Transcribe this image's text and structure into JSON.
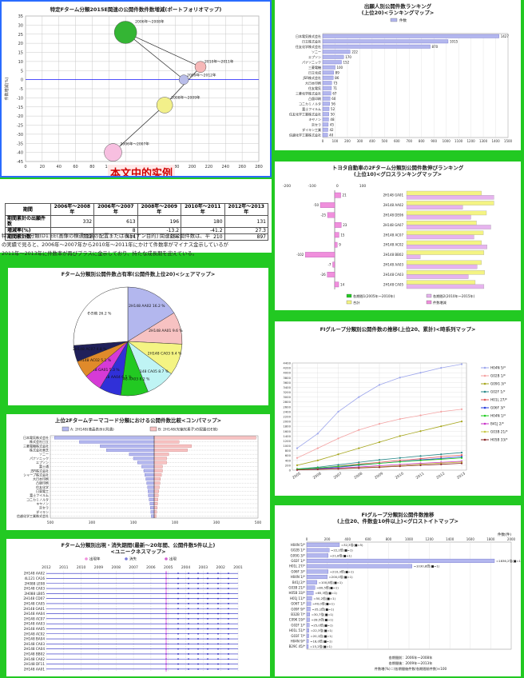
{
  "p1": {
    "title": "特定Fターム分類2015E関連の公開件数件数増減(ポートフォリオマップ)",
    "watermark": "本文中的实例",
    "xticks": [
      "0",
      "20",
      "40",
      "60",
      "80",
      "100",
      "120",
      "140",
      "160",
      "180",
      "200",
      "220",
      "240",
      "260",
      "280"
    ],
    "yticks": [
      "35",
      "30",
      "25",
      "20",
      "15",
      "10",
      "5",
      "0",
      "-5",
      "-10",
      "-15",
      "-20",
      "-25",
      "-30",
      "-35",
      "-40",
      "-45"
    ],
    "xlabel": "公開件数(件)",
    "ylabel": "件数増減(%)",
    "bubbles": [
      {
        "label": "2006年～2008年",
        "x": 120,
        "y": 26,
        "r": 14,
        "color": "#34b534"
      },
      {
        "label": "2010年～2011年",
        "x": 210,
        "y": 7,
        "r": 7,
        "color": "#f6b7b7"
      },
      {
        "label": "2009年～2012年",
        "x": 190,
        "y": 0,
        "r": 6,
        "color": "#b9bde9"
      },
      {
        "label": "2008年～2009年",
        "x": 167,
        "y": -14,
        "r": 10,
        "color": "#f2f08a"
      },
      {
        "label": "2006年～2007年",
        "x": 105,
        "y": -40,
        "r": 11,
        "color": "#f7bfe0"
      }
    ],
    "table": {
      "headers": [
        "期間",
        "2006年～2008年",
        "2006年～2007年",
        "2008年～2009年",
        "2010年～2011年",
        "2012年～2013年"
      ],
      "rows": [
        {
          "label": "期間累計の出願件数",
          "values": [
            "332",
            "613",
            "196",
            "180",
            "131"
          ]
        },
        {
          "label": "増減率(%)",
          "values": [
            "",
            "8",
            "-13.2",
            "-41.2",
            "27.3"
          ]
        },
        {
          "label": "期間累計数",
          "values": [
            "332",
            "414",
            "356",
            "210",
            "897"
          ]
        }
      ]
    },
    "para": [
      "特定Fターム分類(D1:EE(画像の横通視盤の配置または表示[ナン目的] 関連の公開件数は、平",
      "の実績で見ると、2006年～2007年から2010年～2011年にかけて件数率がマイナス金示しているが",
      "2011年～2013年に件数率が再びプラスに金示しており、持たな成長期を迎えている。"
    ]
  },
  "p2": {
    "title": "Fターム分類別公開件数占有率(公開件数上位20)<シェアマップ>",
    "slices": [
      {
        "label": "2H148 AA02 16.2 %",
        "value": 16.2,
        "color": "#b3b7ee"
      },
      {
        "label": "2H148 AA01 9.6 %",
        "value": 9.6,
        "color": "#f7c2c2"
      },
      {
        "label": "2H148 CA03 9.4 %",
        "value": 9.4,
        "color": "#f4f483"
      },
      {
        "label": "2H148 CA05 8.7 %",
        "value": 8.7,
        "color": "#bff4f4"
      },
      {
        "label": "2H148 AA03 8.2 %",
        "value": 8.2,
        "color": "#22c922"
      },
      {
        "label": "2H148 AA04 6.5 %",
        "value": 6.5,
        "color": "#3030d8"
      },
      {
        "label": "2H148 GA01 5.3 %",
        "value": 5.3,
        "color": "#d63ad6"
      },
      {
        "label": "2H148 AC02 5.1 %",
        "value": 5.1,
        "color": "#e08a2a"
      },
      {
        "label": "2H148 AC07 4.8 %",
        "value": 4.8,
        "color": "#20205a"
      },
      {
        "label": "その他 26.2 %",
        "value": 26.2,
        "color": "#ffffff"
      }
    ]
  },
  "p3": {
    "title": "上位2Fタームテーマコード分類における公開件数比較<コンパマップ>",
    "legend": [
      "A: 2H148(液晶表示)(共通)",
      "B: 2H148(光偏光素子)の配置(DE他)"
    ],
    "items": [
      {
        "name": "日本電気株式会社",
        "a": 480,
        "b": 490
      },
      {
        "name": "株式会社日立",
        "a": 360,
        "b": 120
      },
      {
        "name": "三菱電機株式会社",
        "a": 260,
        "b": 180
      },
      {
        "name": "株式会社東芝",
        "a": 230,
        "b": 160
      },
      {
        "name": "ソニー",
        "a": 120,
        "b": 70
      },
      {
        "name": "パナソニック",
        "a": 100,
        "b": 60
      },
      {
        "name": "エプソン",
        "a": 80,
        "b": 60
      },
      {
        "name": "富士通",
        "a": 60,
        "b": 40
      },
      {
        "name": "JSR株式会社",
        "a": 50,
        "b": 40
      },
      {
        "name": "シャープ株式会社",
        "a": 45,
        "b": 35
      },
      {
        "name": "大日本印刷",
        "a": 40,
        "b": 30
      },
      {
        "name": "凸版印刷",
        "a": 36,
        "b": 28
      },
      {
        "name": "住友化学",
        "a": 32,
        "b": 25
      },
      {
        "name": "日東電工",
        "a": 30,
        "b": 22
      },
      {
        "name": "富士フイルム",
        "a": 28,
        "b": 20
      },
      {
        "name": "コニカミノルタ",
        "a": 24,
        "b": 18
      },
      {
        "name": "キヤノン",
        "a": 20,
        "b": 16
      },
      {
        "name": "京セラ",
        "a": 18,
        "b": 14
      },
      {
        "name": "ダイキン",
        "a": 16,
        "b": 12
      },
      {
        "name": "信越化学工業株式会社",
        "a": 14,
        "b": 10
      }
    ],
    "ticks": [
      "500",
      "300",
      "100",
      "100",
      "300",
      "500"
    ]
  },
  "p4": {
    "title": "Fターム分類別出現・消失期間(最新～20年間、公開件数5件以上)",
    "subtitle": "<ユニークネスマップ>",
    "legend": [
      "出現年",
      "消失",
      "出現"
    ],
    "years": [
      "2012",
      "2011",
      "2010",
      "2009",
      "2008",
      "2007",
      "2006",
      "2005",
      "2004",
      "2003",
      "2002",
      "2001"
    ],
    "rows": [
      "2H148 AA02",
      "4L121 CA16",
      "2H088 LE08",
      "2H148 CA03",
      "2H088 LB05",
      "2H148 CD07",
      "2H148 CA05",
      "2H148 GA01",
      "2H148 AA04",
      "2H148 AC07",
      "2H148 AA03",
      "2H148 AA05",
      "2H148 AC02",
      "2H148 BA04",
      "2H148 CA03",
      "2H148 CA04",
      "2H148 BB02",
      "2H148 CA02",
      "2H148 DF11",
      "2H148 AA01"
    ]
  },
  "p5": {
    "title": "出願人別公開件数ランキング",
    "subtitle": "(上位20)<ランキングマップ>",
    "legend": "件数",
    "items": [
      {
        "name": "日本電気株式会社",
        "value": 1427
      },
      {
        "name": "日立株式会社",
        "value": 1015
      },
      {
        "name": "住友化学株式会社",
        "value": 870
      },
      {
        "name": "ソニー",
        "value": 222
      },
      {
        "name": "エプソン",
        "value": 170
      },
      {
        "name": "パナソニック",
        "value": 152
      },
      {
        "name": "三菱電機",
        "value": 100
      },
      {
        "name": "日立化成",
        "value": 89
      },
      {
        "name": "JSR株式会社",
        "value": 86
      },
      {
        "name": "大日本印刷",
        "value": 73
      },
      {
        "name": "住友電気",
        "value": 71
      },
      {
        "name": "三菱化学株式会社",
        "value": 67
      },
      {
        "name": "凸版印刷",
        "value": 60
      },
      {
        "name": "コニカミノルタ",
        "value": 56
      },
      {
        "name": "富士フイルム",
        "value": 52
      },
      {
        "name": "住友化学工業株式会社",
        "value": 50
      },
      {
        "name": "キヤノン",
        "value": 48
      },
      {
        "name": "京セラ",
        "value": 45
      },
      {
        "name": "ダイキン工業",
        "value": 42
      },
      {
        "name": "信越化学工業株式会社",
        "value": 40
      }
    ],
    "ticks": [
      "0",
      "100",
      "200",
      "300",
      "400",
      "500",
      "600",
      "700",
      "800",
      "900",
      "1000",
      "1100",
      "1200",
      "1300",
      "1400",
      "1500"
    ]
  },
  "p6": {
    "title": "トヨタ自動車の2Fターム分類別公開件数伸びランキング",
    "subtitle": "(上位10)<グロスランキングマップ>",
    "legend": [
      "各期間1(2005年～2010年)",
      "各期間2(2010年～2015年)",
      "合計",
      "件数増減"
    ],
    "rows": [
      {
        "label": "2H148 GA01",
        "delta": 21,
        "v1": 120,
        "v2": 140
      },
      {
        "label": "2H148 AA02",
        "delta": -50,
        "v1": 140,
        "v2": 90
      },
      {
        "label": "2H148 DE06",
        "delta": -25,
        "v1": 128,
        "v2": 103
      },
      {
        "label": "2H148 GA07",
        "delta": 23,
        "v1": 112,
        "v2": 135
      },
      {
        "label": "2H148 AC07",
        "delta": 15,
        "v1": 123,
        "v2": 108
      },
      {
        "label": "2H148 AC02",
        "delta": 9,
        "v1": 120,
        "v2": 129
      },
      {
        "label": "2H148 BB02",
        "delta": -102,
        "v1": 124,
        "v2": 22
      },
      {
        "label": "2H148 AA03",
        "delta": -7,
        "v1": 120,
        "v2": 113
      },
      {
        "label": "2H148 CA03",
        "delta": -26,
        "v1": 125,
        "v2": 99
      },
      {
        "label": "2H148 CA05",
        "delta": 14,
        "v1": 110,
        "v2": 124
      }
    ]
  },
  "p7": {
    "title": "FIグループ分類別公開件数の推移(上位20、累計)<時系列マップ>",
    "years": [
      "2005",
      "2006",
      "2007",
      "2008",
      "2009",
      "2010",
      "2011",
      "2012",
      "2013"
    ],
    "yticks": [
      "0",
      "200",
      "400",
      "600",
      "800",
      "1000",
      "1200",
      "1400",
      "1600",
      "1800",
      "2000",
      "2200",
      "2400",
      "2600",
      "2800",
      "3000",
      "3200",
      "3400",
      "3600",
      "3800",
      "4000",
      "4200",
      "4400"
    ],
    "series": [
      {
        "name": "H04N 5/*",
        "color": "#9ea7ec",
        "values": [
          900,
          1500,
          2400,
          3000,
          3500,
          3800,
          4000,
          4200,
          4350
        ]
      },
      {
        "name": "G02B 1/*",
        "color": "#f4a3a3",
        "values": [
          500,
          900,
          1300,
          1650,
          1900,
          2100,
          2250,
          2400,
          2500
        ]
      },
      {
        "name": "G09G 3/*",
        "color": "#a7a71e",
        "values": [
          200,
          400,
          650,
          900,
          1150,
          1400,
          1600,
          1800,
          2000
        ]
      },
      {
        "name": "G02F 1/*",
        "color": "#2a8a8a",
        "values": [
          50,
          120,
          220,
          320,
          420,
          500,
          580,
          650,
          720
        ]
      },
      {
        "name": "H01L 27/*",
        "color": "#e15a5a",
        "values": [
          30,
          80,
          160,
          250,
          320,
          400,
          470,
          550,
          620
        ]
      },
      {
        "name": "G06F 3/*",
        "color": "#2a3fdc",
        "values": [
          20,
          60,
          120,
          200,
          280,
          350,
          420,
          480,
          550
        ]
      },
      {
        "name": "H04N 1/*",
        "color": "#1ecb1e",
        "values": [
          40,
          90,
          150,
          220,
          280,
          340,
          400,
          450,
          500
        ]
      },
      {
        "name": "B41J 2/*",
        "color": "#c832c8",
        "values": [
          10,
          40,
          80,
          130,
          180,
          230,
          280,
          320,
          360
        ]
      },
      {
        "name": "G03B 21/*",
        "color": "#c7c746",
        "values": [
          15,
          35,
          60,
          100,
          140,
          190,
          240,
          290,
          330
        ]
      },
      {
        "name": "H05B 33/*",
        "color": "#8a2828",
        "values": [
          10,
          30,
          55,
          85,
          120,
          160,
          200,
          240,
          280
        ]
      }
    ]
  },
  "p8": {
    "title": "FIグループ分類別公開件数推移",
    "subtitle": "(上位20、件数金10件以上)<グロストイトマップ>",
    "unit": "件数(件)",
    "ticks": [
      "0",
      "200",
      "400",
      "600",
      "800",
      "1000",
      "1200",
      "1400",
      "1600",
      "1800",
      "2000"
    ],
    "rows": [
      {
        "label": "H04N 5/*",
        "text": "=32,3倍(■=5)",
        "value": 320
      },
      {
        "label": "G02B 1/*",
        "text": "=22,2倍(■=1)",
        "value": 220
      },
      {
        "label": "G09G 3/*",
        "text": "=21,8倍(■=1)",
        "value": 210
      },
      {
        "label": "G02F 1/*",
        "text": "=1836,2倍(■=1)",
        "value": 1836
      },
      {
        "label": "H01L 27/*",
        "text": "=1030,8倍(■=1)",
        "value": 1030
      },
      {
        "label": "G06F 3/*",
        "text": "=210,3倍(■=1)",
        "value": 210
      },
      {
        "label": "H04N 1/*",
        "text": "=200,0倍(■=1)",
        "value": 200
      },
      {
        "label": "B41J 2/*",
        "text": "=100,8倍(■=1)",
        "value": 100
      },
      {
        "label": "G03B 21/*",
        "text": "=80,5倍(■=1)",
        "value": 80
      },
      {
        "label": "H05B 33/*",
        "text": "=65,3倍(■=1)",
        "value": 65
      },
      {
        "label": "H01J 11/*",
        "text": "=50,2倍(■=1)",
        "value": 50
      },
      {
        "label": "G06T 1/*",
        "text": "=40,0倍(■=1)",
        "value": 40
      },
      {
        "label": "G09F 9/*",
        "text": "=35,1倍(■=1)",
        "value": 35
      },
      {
        "label": "B32B 7/*",
        "text": "=30,7倍(■=1)",
        "value": 30
      },
      {
        "label": "C09K 19/*",
        "text": "=28,5倍(■=1)",
        "value": 28
      },
      {
        "label": "G02F 1/*",
        "text": "=25,0倍(■=1)",
        "value": 25
      },
      {
        "label": "H01L 51/*",
        "text": "=22,3倍(■=1)",
        "value": 22
      },
      {
        "label": "G03F 7/*",
        "text": "=20,1倍(■=1)",
        "value": 20
      },
      {
        "label": "H04N 9/*",
        "text": "=18,0倍(■=1)",
        "value": 18
      },
      {
        "label": "B29C 45/*",
        "text": "=15,2倍(■=1)",
        "value": 15
      }
    ],
    "notes": [
      "各期間前：2006年～2008年",
      "各期間後：2009年～2013年",
      "件数増(%)＝(各期間後件数/各期間前件数)×100"
    ]
  }
}
